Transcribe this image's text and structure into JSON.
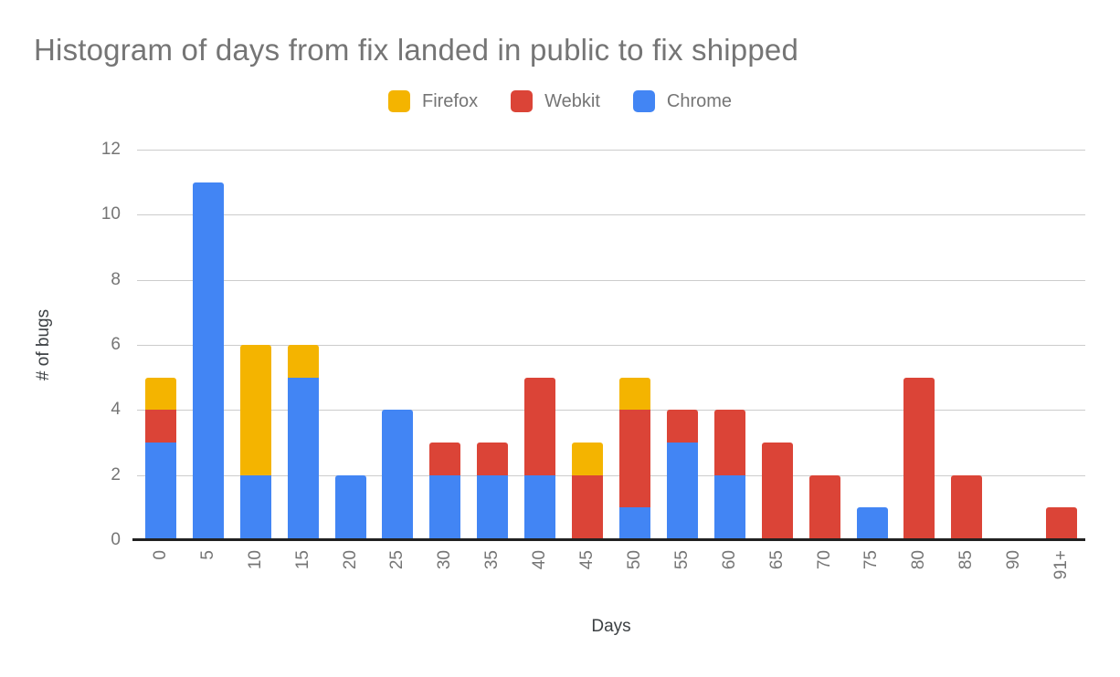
{
  "chart": {
    "title": "Histogram of days from fix landed in public to fix shipped",
    "x_axis_title": "Days",
    "y_axis_title": "# of bugs"
  },
  "legend": {
    "items": [
      {
        "label": "Firefox",
        "color": "#F4B400"
      },
      {
        "label": "Webkit",
        "color": "#DB4437"
      },
      {
        "label": "Chrome",
        "color": "#4285F4"
      }
    ]
  },
  "colors": {
    "firefox": "#F4B400",
    "webkit": "#DB4437",
    "chrome": "#4285F4",
    "gridline": "#cccccc",
    "axis_line": "#212121",
    "tick_text": "#757575",
    "axis_title_text": "#3c4043",
    "title_text": "#757575",
    "background": "#ffffff"
  },
  "chart_data": {
    "type": "bar",
    "stacked": true,
    "title": "Histogram of days from fix landed in public to fix shipped",
    "xlabel": "Days",
    "ylabel": "# of bugs",
    "ylim": [
      0,
      12
    ],
    "y_ticks": [
      0,
      2,
      4,
      6,
      8,
      10,
      12
    ],
    "grid": true,
    "legend_position": "top",
    "legend_display_order": [
      "Firefox",
      "Webkit",
      "Chrome"
    ],
    "stack_order_bottom_to_top": [
      "Chrome",
      "Webkit",
      "Firefox"
    ],
    "categories": [
      "0",
      "5",
      "10",
      "15",
      "20",
      "25",
      "30",
      "35",
      "40",
      "45",
      "50",
      "55",
      "60",
      "65",
      "70",
      "75",
      "80",
      "85",
      "90",
      "91+"
    ],
    "series": [
      {
        "name": "Chrome",
        "color": "#4285F4",
        "values": [
          3,
          11,
          2,
          5,
          2,
          4,
          2,
          2,
          2,
          0,
          1,
          3,
          2,
          0,
          0,
          1,
          0,
          0,
          0,
          0
        ]
      },
      {
        "name": "Webkit",
        "color": "#DB4437",
        "values": [
          1,
          0,
          0,
          0,
          0,
          0,
          1,
          1,
          3,
          2,
          3,
          1,
          2,
          3,
          2,
          0,
          5,
          2,
          0,
          1
        ]
      },
      {
        "name": "Firefox",
        "color": "#F4B400",
        "values": [
          1,
          0,
          4,
          1,
          0,
          0,
          0,
          0,
          0,
          1,
          1,
          0,
          0,
          0,
          0,
          0,
          0,
          0,
          0,
          0
        ]
      }
    ],
    "stack_totals": [
      5,
      11,
      6,
      6,
      2,
      4,
      3,
      3,
      5,
      3,
      5,
      4,
      4,
      3,
      2,
      1,
      5,
      2,
      0,
      1
    ]
  }
}
